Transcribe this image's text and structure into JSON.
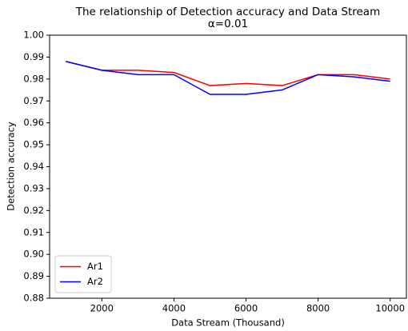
{
  "chart_data": {
    "type": "line",
    "title": "The relationship of Detection accuracy and Data Stream",
    "subtitle": "α=0.01",
    "x_label": "Data Stream (Thousand)",
    "y_label": "Detection accuracy",
    "x": [
      1000,
      2000,
      3000,
      4000,
      5000,
      6000,
      7000,
      8000,
      9000,
      10000
    ],
    "series": [
      {
        "name": "Ar1",
        "color": "#ff0000",
        "values": [
          0.988,
          0.984,
          0.984,
          0.983,
          0.977,
          0.978,
          0.977,
          0.982,
          0.982,
          0.98
        ]
      },
      {
        "name": "Ar2",
        "color": "#0000ff",
        "values": [
          0.988,
          0.984,
          0.982,
          0.982,
          0.973,
          0.973,
          0.975,
          0.982,
          0.981,
          0.979
        ]
      }
    ],
    "xlim": [
      550,
      10450
    ],
    "xticks": [
      2000,
      4000,
      6000,
      8000,
      10000
    ],
    "ylim": [
      0.88,
      1.0
    ],
    "yticks": [
      0.88,
      0.89,
      {
        "value": 0.9,
        "label": "0.90"
      },
      0.91,
      0.92,
      0.93,
      0.94,
      0.95,
      0.96,
      0.97,
      0.98,
      0.99,
      {
        "value": 1.0,
        "label": "1.00"
      }
    ],
    "legend": "lower left"
  }
}
